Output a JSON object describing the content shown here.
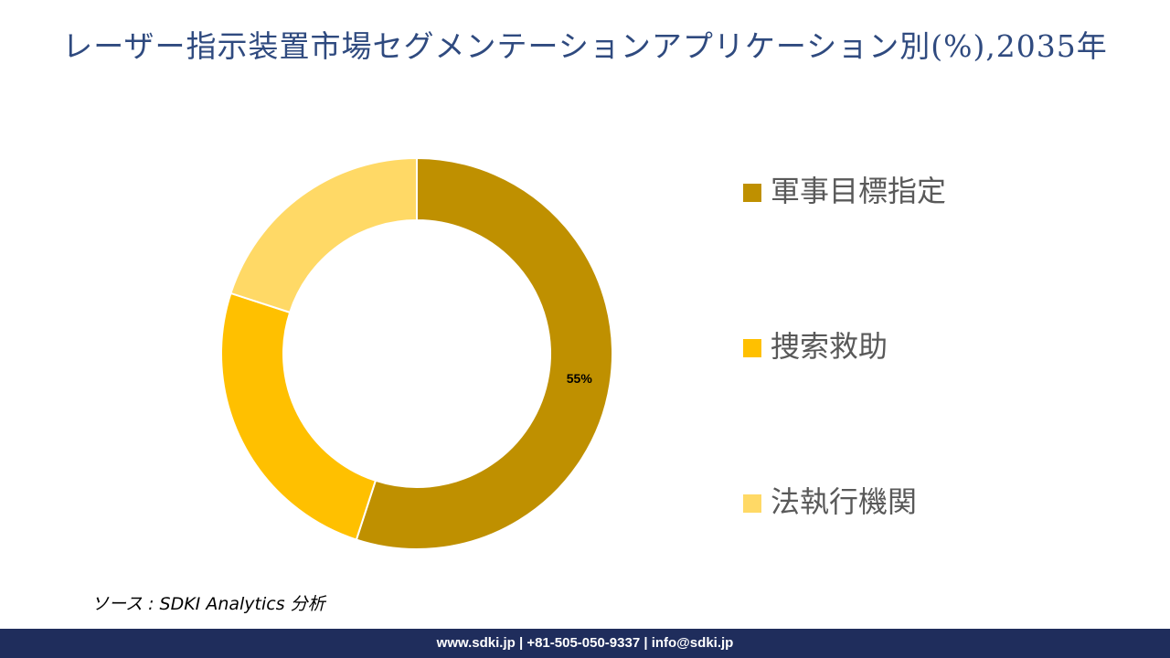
{
  "chart_data": {
    "type": "donut",
    "title": "レーザー指示装置市場セグメンテーションアプリケーション別(%),2035年",
    "categories": [
      "軍事目標指定",
      "捜索救助",
      "法執行機関"
    ],
    "values": [
      55,
      25,
      20
    ],
    "value_labels": [
      "55%",
      null,
      null
    ],
    "colors": [
      "#bf9000",
      "#ffc000",
      "#ffd966"
    ]
  },
  "source": "ソース : SDKI Analytics 分析",
  "footer": "www.sdki.jp | +81-505-050-9337 | info@sdki.jp"
}
